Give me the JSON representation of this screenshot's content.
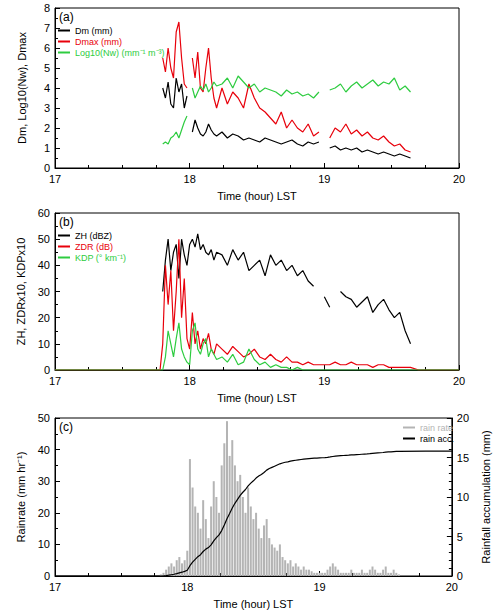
{
  "chart_data": [
    {
      "type": "line",
      "title": "(a)",
      "xlabel": "Time (hour) LST",
      "ylabel": "Dm, Log10(Nw), Dmax",
      "xlim": [
        17,
        20
      ],
      "xticks": [
        17,
        18,
        19,
        20
      ],
      "ylim": [
        0,
        8
      ],
      "yticks": [
        0,
        1,
        2,
        3,
        4,
        5,
        6,
        7,
        8
      ],
      "grid": false,
      "legend": "upper left",
      "x": [
        17.8,
        17.82,
        17.84,
        17.86,
        17.88,
        17.9,
        17.92,
        17.94,
        17.96,
        17.98,
        18.0,
        18.02,
        18.04,
        18.06,
        18.08,
        18.1,
        18.12,
        18.14,
        18.16,
        18.18,
        18.2,
        18.24,
        18.28,
        18.32,
        18.36,
        18.4,
        18.44,
        18.48,
        18.52,
        18.56,
        18.6,
        18.64,
        18.68,
        18.72,
        18.76,
        18.8,
        18.84,
        18.88,
        18.92,
        18.96,
        19.0,
        19.04,
        19.08,
        19.12,
        19.16,
        19.2,
        19.24,
        19.28,
        19.32,
        19.36,
        19.4,
        19.44,
        19.48,
        19.52,
        19.56,
        19.6,
        19.64
      ],
      "series": [
        {
          "name": "Dm (mm)",
          "color": "#000000",
          "values": [
            4.0,
            3.5,
            4.3,
            3.2,
            3.0,
            4.5,
            3.8,
            4.2,
            3.0,
            3.6,
            null,
            1.8,
            2.4,
            2.0,
            1.7,
            1.6,
            1.8,
            2.2,
            1.9,
            1.7,
            1.6,
            1.8,
            1.5,
            1.7,
            1.6,
            1.4,
            1.5,
            1.4,
            1.3,
            1.5,
            1.4,
            1.3,
            1.2,
            1.3,
            1.4,
            1.2,
            1.1,
            1.3,
            1.2,
            1.3,
            null,
            1.0,
            1.1,
            0.9,
            1.0,
            0.9,
            1.0,
            0.8,
            0.9,
            0.8,
            0.7,
            0.8,
            0.7,
            0.6,
            0.7,
            0.6,
            0.5
          ]
        },
        {
          "name": "Dmax (mm)",
          "color": "#e8000b",
          "values": [
            5.5,
            4.8,
            6.0,
            5.0,
            4.5,
            6.8,
            7.3,
            5.5,
            4.2,
            4.0,
            null,
            5.5,
            4.5,
            5.8,
            4.0,
            3.8,
            5.0,
            6.0,
            4.5,
            3.5,
            3.0,
            4.0,
            3.2,
            3.8,
            3.5,
            3.0,
            4.2,
            3.5,
            3.0,
            2.8,
            2.5,
            2.2,
            2.8,
            2.0,
            2.4,
            2.0,
            1.8,
            2.2,
            1.6,
            1.8,
            null,
            1.5,
            2.0,
            1.8,
            2.2,
            1.7,
            1.9,
            1.6,
            1.8,
            1.5,
            1.4,
            1.6,
            1.3,
            1.1,
            1.2,
            0.9,
            0.8
          ]
        },
        {
          "name": "Log10(Nw) (mm⁻¹ m⁻³)",
          "color": "#2ecc40",
          "values": [
            1.2,
            1.3,
            1.2,
            1.5,
            1.6,
            1.8,
            1.5,
            1.9,
            2.3,
            2.6,
            null,
            4.0,
            3.5,
            3.8,
            4.1,
            3.9,
            4.2,
            3.8,
            4.0,
            4.3,
            4.1,
            4.2,
            4.5,
            4.0,
            4.6,
            4.3,
            4.0,
            4.2,
            3.8,
            4.0,
            3.9,
            3.8,
            3.6,
            3.9,
            3.7,
            3.8,
            3.6,
            3.7,
            3.5,
            3.8,
            null,
            3.9,
            4.0,
            4.2,
            3.8,
            4.1,
            4.3,
            4.0,
            4.2,
            4.4,
            4.1,
            4.3,
            4.2,
            4.5,
            3.9,
            4.1,
            3.8
          ]
        }
      ]
    },
    {
      "type": "line",
      "title": "(b)",
      "xlabel": "Time (hour) LST",
      "ylabel": "ZH, ZDRx10, KDPx10",
      "xlim": [
        17,
        20
      ],
      "xticks": [
        17,
        18,
        19,
        20
      ],
      "ylim": [
        0,
        60
      ],
      "yticks": [
        0,
        10,
        20,
        30,
        40,
        50,
        60
      ],
      "grid": false,
      "legend": "upper left",
      "x": [
        17.0,
        17.78,
        17.8,
        17.82,
        17.84,
        17.86,
        17.88,
        17.9,
        17.92,
        17.94,
        17.96,
        17.98,
        18.0,
        18.02,
        18.04,
        18.06,
        18.08,
        18.1,
        18.12,
        18.14,
        18.16,
        18.18,
        18.2,
        18.24,
        18.28,
        18.32,
        18.36,
        18.4,
        18.44,
        18.48,
        18.52,
        18.56,
        18.6,
        18.64,
        18.68,
        18.72,
        18.76,
        18.8,
        18.84,
        18.88,
        18.92,
        18.96,
        19.0,
        19.04,
        19.08,
        19.12,
        19.16,
        19.2,
        19.24,
        19.28,
        19.32,
        19.36,
        19.4,
        19.44,
        19.48,
        19.52,
        19.56,
        19.6,
        19.64,
        19.7,
        20.0
      ],
      "series": [
        {
          "name": "ZH (dBZ)",
          "color": "#000000",
          "values": [
            null,
            null,
            30,
            42,
            50,
            38,
            45,
            48,
            35,
            50,
            44,
            40,
            48,
            50,
            47,
            52,
            46,
            48,
            45,
            44,
            46,
            42,
            45,
            44,
            40,
            46,
            42,
            45,
            38,
            40,
            42,
            36,
            44,
            40,
            42,
            38,
            40,
            36,
            38,
            34,
            32,
            null,
            28,
            24,
            null,
            30,
            28,
            27,
            24,
            26,
            28,
            22,
            25,
            27,
            23,
            20,
            22,
            15,
            10,
            null,
            null
          ]
        },
        {
          "name": "ZDR (dB)",
          "color": "#e8000b",
          "values": [
            0,
            0,
            10,
            40,
            25,
            38,
            15,
            30,
            50,
            20,
            35,
            12,
            8,
            22,
            10,
            15,
            8,
            12,
            10,
            14,
            8,
            6,
            10,
            8,
            6,
            9,
            7,
            5,
            6,
            8,
            5,
            4,
            6,
            4,
            3,
            5,
            3,
            3,
            2,
            3,
            2,
            2,
            2,
            2,
            3,
            2,
            2,
            3,
            2,
            2,
            2,
            1,
            2,
            2,
            1,
            1,
            1,
            1,
            1,
            0,
            0
          ]
        },
        {
          "name": "KDP (° km⁻¹)",
          "color": "#2ecc40",
          "values": [
            0,
            0,
            0,
            5,
            15,
            10,
            5,
            12,
            18,
            8,
            5,
            3,
            2,
            15,
            18,
            8,
            6,
            10,
            12,
            5,
            8,
            6,
            4,
            5,
            3,
            6,
            2,
            3,
            8,
            4,
            2,
            3,
            1,
            2,
            1,
            1,
            0,
            1,
            0,
            0,
            0,
            0,
            0,
            0,
            0,
            0,
            0,
            0,
            0,
            0,
            0,
            0,
            0,
            0,
            0,
            0,
            0,
            0,
            0,
            0,
            0
          ]
        }
      ]
    },
    {
      "type": "bar",
      "title": "(c)",
      "xlabel": "Time (hour) LST",
      "ylabel": "Rainrate (mm hr⁻¹)",
      "y2label": "Rainfall accumulation (mm)",
      "xlim": [
        17,
        20
      ],
      "xticks": [
        17,
        18,
        19,
        20
      ],
      "ylim": [
        0,
        50
      ],
      "yticks": [
        0,
        10,
        20,
        30,
        40,
        50
      ],
      "y2lim": [
        0,
        20
      ],
      "y2ticks": [
        0,
        5,
        10,
        15,
        20
      ],
      "grid": false,
      "legend": "upper right",
      "x": [
        17.0,
        17.78,
        17.8,
        17.82,
        17.84,
        17.86,
        17.88,
        17.9,
        17.92,
        17.94,
        17.96,
        17.98,
        18.0,
        18.02,
        18.04,
        18.06,
        18.08,
        18.1,
        18.12,
        18.14,
        18.16,
        18.18,
        18.2,
        18.22,
        18.24,
        18.26,
        18.28,
        18.3,
        18.32,
        18.34,
        18.36,
        18.38,
        18.4,
        18.42,
        18.44,
        18.46,
        18.48,
        18.5,
        18.52,
        18.54,
        18.56,
        18.58,
        18.6,
        18.62,
        18.64,
        18.66,
        18.68,
        18.7,
        18.72,
        18.74,
        18.76,
        18.78,
        18.8,
        18.82,
        18.84,
        18.86,
        18.88,
        18.9,
        18.92,
        18.94,
        18.96,
        18.98,
        19.0,
        19.02,
        19.04,
        19.06,
        19.08,
        19.1,
        19.12,
        19.14,
        19.16,
        19.18,
        19.2,
        19.22,
        19.24,
        19.26,
        19.28,
        19.3,
        19.32,
        19.34,
        19.36,
        19.38,
        19.4,
        19.42,
        19.44,
        19.46,
        19.48,
        19.5,
        19.52,
        19.54,
        19.56,
        19.58,
        19.6,
        19.8,
        20.0
      ],
      "series": [
        {
          "name": "rain rate",
          "type": "bar",
          "color": "#b4b4b4",
          "values": [
            null,
            null,
            0.5,
            1,
            2,
            3,
            4,
            3,
            5,
            6,
            4,
            5,
            8,
            37,
            28,
            22,
            20,
            15,
            24,
            18,
            12,
            22,
            30,
            25,
            20,
            35,
            42,
            49,
            38,
            43,
            35,
            30,
            32,
            25,
            20,
            28,
            22,
            18,
            20,
            15,
            12,
            16,
            18,
            12,
            10,
            9,
            8,
            10,
            6,
            5,
            4,
            5,
            3,
            4,
            3,
            2,
            3,
            2,
            2,
            1.5,
            1,
            1,
            1,
            1,
            1,
            2,
            3,
            4,
            3,
            2,
            1,
            1,
            1,
            1,
            2,
            1,
            1,
            1,
            2,
            1,
            1,
            2,
            3,
            2,
            1,
            1,
            2,
            3,
            1,
            1,
            2,
            1,
            0.5,
            null,
            null
          ]
        },
        {
          "name": "rain acc.",
          "type": "line",
          "axis": "y2",
          "color": "#000000",
          "values": [
            0,
            0,
            0,
            0.02,
            0.05,
            0.1,
            0.16,
            0.22,
            0.3,
            0.4,
            0.48,
            0.58,
            0.72,
            1.3,
            1.75,
            2.1,
            2.45,
            2.7,
            3.1,
            3.4,
            3.6,
            3.95,
            4.45,
            4.85,
            5.2,
            5.75,
            6.45,
            7.25,
            7.9,
            8.6,
            9.2,
            9.7,
            10.2,
            10.6,
            10.95,
            11.4,
            11.75,
            12.05,
            12.4,
            12.65,
            12.85,
            13.1,
            13.4,
            13.6,
            13.75,
            13.9,
            14.05,
            14.2,
            14.3,
            14.4,
            14.45,
            14.55,
            14.6,
            14.65,
            14.7,
            14.75,
            14.8,
            14.83,
            14.86,
            14.89,
            14.91,
            14.93,
            14.95,
            14.97,
            14.99,
            15.02,
            15.07,
            15.13,
            15.18,
            15.21,
            15.23,
            15.25,
            15.27,
            15.29,
            15.32,
            15.34,
            15.36,
            15.38,
            15.41,
            15.43,
            15.45,
            15.48,
            15.53,
            15.56,
            15.58,
            15.6,
            15.63,
            15.68,
            15.7,
            15.72,
            15.75,
            15.77,
            15.78,
            15.8,
            15.8
          ]
        }
      ]
    }
  ]
}
